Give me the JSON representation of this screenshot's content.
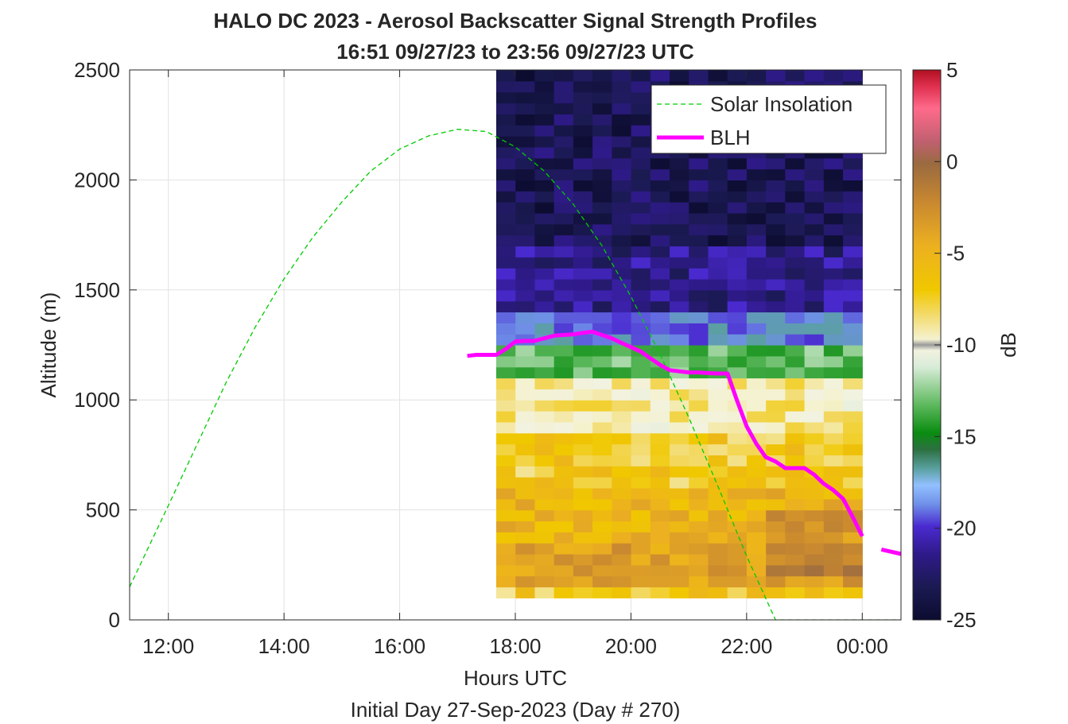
{
  "chart_data": {
    "type": "heatmap",
    "title": "HALO DC 2023 - Aerosol Backscatter Signal Strength Profiles",
    "subtitle": "16:51 09/27/23 to 23:56 09/27/23  UTC",
    "xlabel": "Hours UTC",
    "xlabel2": "Initial Day 27-Sep-2023 (Day # 270)",
    "ylabel": "Altitude (m)",
    "colorbar_label": "dB",
    "xlim": [
      11.33,
      24.67
    ],
    "ylim": [
      0,
      2500
    ],
    "clim": [
      -25,
      5
    ],
    "grid": true,
    "legend_position": "top-right",
    "x_ticks": [
      12,
      14,
      16,
      18,
      20,
      22,
      24
    ],
    "x_tick_labels": [
      "12:00",
      "14:00",
      "16:00",
      "18:00",
      "20:00",
      "22:00",
      "00:00"
    ],
    "y_ticks": [
      0,
      500,
      1000,
      1500,
      2000,
      2500
    ],
    "y_tick_labels": [
      "0",
      "500",
      "1000",
      "1500",
      "2000",
      "2500"
    ],
    "colorbar_ticks": [
      5,
      0,
      -5,
      -10,
      -15,
      -20,
      -25
    ],
    "colorbar_tick_labels": [
      "5",
      "0",
      "-5",
      "-10",
      "-15",
      "-20",
      "-25"
    ],
    "heatmap": {
      "x_start": 17.67,
      "x_end": 24.0,
      "y_start": 100,
      "y_end": 2500,
      "columns": 19,
      "rows": 48,
      "layers": [
        {
          "from": 100,
          "to": 150,
          "value": -7
        },
        {
          "from": 150,
          "to": 350,
          "value": -4
        },
        {
          "from": 350,
          "to": 600,
          "value": -5.5
        },
        {
          "from": 600,
          "to": 850,
          "value": -7
        },
        {
          "from": 850,
          "to": 1100,
          "value": -9
        },
        {
          "from": 1100,
          "to": 1250,
          "value": -13
        },
        {
          "from": 1250,
          "to": 1400,
          "value": -19
        },
        {
          "from": 1400,
          "to": 1700,
          "value": -22
        },
        {
          "from": 1700,
          "to": 2500,
          "value": -23.5
        }
      ]
    },
    "series": [
      {
        "name": "Solar Insolation",
        "style": "dashed",
        "color": "#00cc00",
        "x": [
          11.33,
          12.0,
          12.5,
          13.0,
          13.5,
          14.0,
          14.5,
          15.0,
          15.5,
          16.0,
          16.5,
          17.0,
          17.5,
          18.0,
          18.5,
          19.0,
          19.5,
          20.0,
          20.5,
          21.0,
          21.5,
          22.0,
          22.5,
          23.0,
          23.5,
          24.0,
          24.67
        ],
        "y": [
          150,
          520,
          800,
          1080,
          1330,
          1550,
          1740,
          1900,
          2040,
          2140,
          2200,
          2230,
          2220,
          2150,
          2040,
          1890,
          1700,
          1470,
          1210,
          920,
          610,
          290,
          0,
          0,
          0,
          0,
          0
        ]
      },
      {
        "name": "BLH",
        "style": "solid",
        "color": "#ff00ff",
        "segments": [
          {
            "x": [
              17.17,
              17.33,
              17.67,
              17.83,
              18.0,
              18.17,
              18.33,
              18.5,
              18.67,
              18.83,
              19.0,
              19.17,
              19.33,
              19.5,
              19.67,
              19.83,
              20.0,
              20.17,
              20.33,
              20.5,
              20.67,
              20.83,
              21.0,
              21.17,
              21.33,
              21.5,
              21.67,
              21.83,
              22.0,
              22.17,
              22.33,
              22.5,
              22.67,
              22.83,
              23.0,
              23.17,
              23.33,
              23.5,
              23.67,
              23.83,
              24.0
            ],
            "y": [
              1200,
              1205,
              1205,
              1230,
              1265,
              1268,
              1268,
              1280,
              1292,
              1295,
              1298,
              1305,
              1310,
              1295,
              1280,
              1260,
              1240,
              1220,
              1190,
              1160,
              1135,
              1130,
              1125,
              1125,
              1122,
              1120,
              1120,
              1000,
              880,
              800,
              740,
              720,
              690,
              690,
              690,
              660,
              620,
              590,
              550,
              470,
              380
            ]
          },
          {
            "x": [
              24.33,
              24.67
            ],
            "y": [
              320,
              300
            ]
          }
        ]
      }
    ],
    "legend": [
      {
        "label": "Solar Insolation",
        "style": "dashed",
        "color": "#00cc00"
      },
      {
        "label": "BLH",
        "style": "solid",
        "color": "#ff00ff"
      }
    ]
  }
}
